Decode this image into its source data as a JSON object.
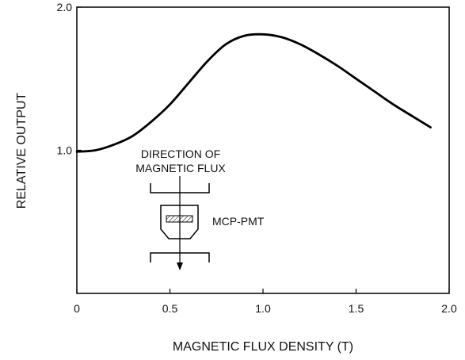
{
  "chart_data": {
    "type": "line",
    "title": "",
    "xlabel": "MAGNETIC FLUX DENSITY (T)",
    "ylabel": "RELATIVE OUTPUT",
    "xlim": [
      0,
      2.0
    ],
    "ylim": [
      0,
      2.0
    ],
    "xticks": [
      "0",
      "0.5",
      "1.0",
      "1.5",
      "2.0"
    ],
    "yticks": [
      "1.0",
      "2.0"
    ],
    "grid": false,
    "series": [
      {
        "x": [
          0,
          0.1,
          0.2,
          0.3,
          0.4,
          0.5,
          0.6,
          0.7,
          0.8,
          0.9,
          1.0,
          1.1,
          1.2,
          1.3,
          1.4,
          1.5,
          1.6,
          1.7,
          1.8,
          1.9
        ],
        "y": [
          0.99,
          1.0,
          1.04,
          1.1,
          1.2,
          1.32,
          1.47,
          1.62,
          1.74,
          1.8,
          1.81,
          1.79,
          1.74,
          1.67,
          1.59,
          1.5,
          1.41,
          1.32,
          1.24,
          1.16
        ],
        "color": "#000000"
      }
    ],
    "annotations": {
      "direction_label_line1": "DIRECTION OF",
      "direction_label_line2": "MAGNETIC FLUX",
      "device_label": "MCP-PMT"
    }
  }
}
